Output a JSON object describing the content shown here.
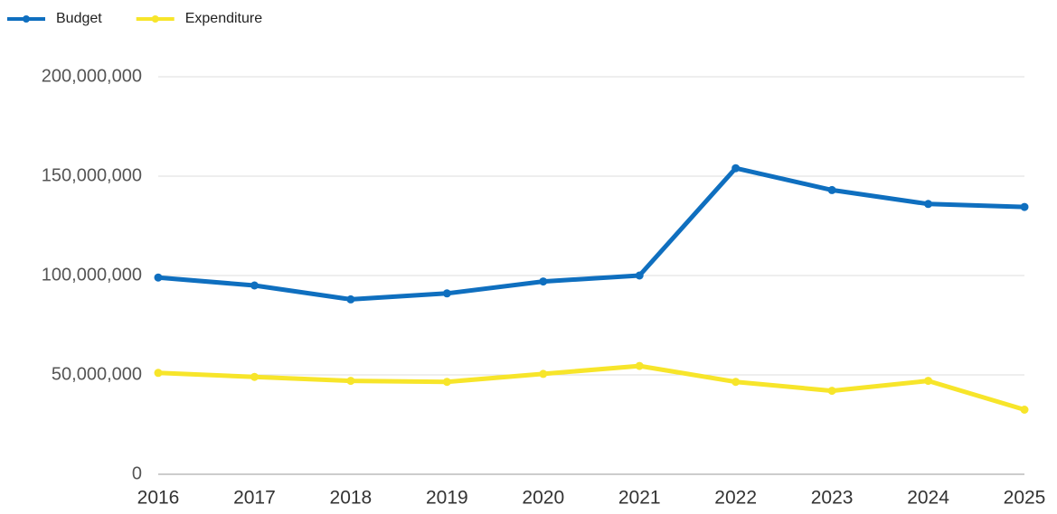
{
  "chart_data": {
    "type": "line",
    "x": [
      2016,
      2017,
      2018,
      2019,
      2020,
      2021,
      2022,
      2023,
      2024,
      2025
    ],
    "xlim": [
      2016,
      2025
    ],
    "xticks": [
      2016,
      2017,
      2018,
      2019,
      2020,
      2021,
      2022,
      2023,
      2024,
      2025
    ],
    "series": [
      {
        "name": "Budget",
        "color": "#0f6fbf",
        "values": [
          99000000,
          95000000,
          88000000,
          91000000,
          97000000,
          100000000,
          154000000,
          143000000,
          136000000,
          134500000
        ]
      },
      {
        "name": "Expenditure",
        "color": "#f7e52a",
        "values": [
          51000000,
          49000000,
          47000000,
          46500000,
          50500000,
          54500000,
          46500000,
          42000000,
          47000000,
          32500000
        ]
      }
    ],
    "ylim": [
      0,
      200000000
    ],
    "yticks": [
      0,
      {
        "value": 50000000,
        "label": "50,000,000"
      },
      {
        "value": 100000000,
        "label": "100,000,000"
      },
      {
        "value": 150000000,
        "label": "150,000,000"
      },
      {
        "value": 200000000,
        "label": "200,000,000"
      }
    ],
    "grid": true,
    "legend": "top-left"
  }
}
